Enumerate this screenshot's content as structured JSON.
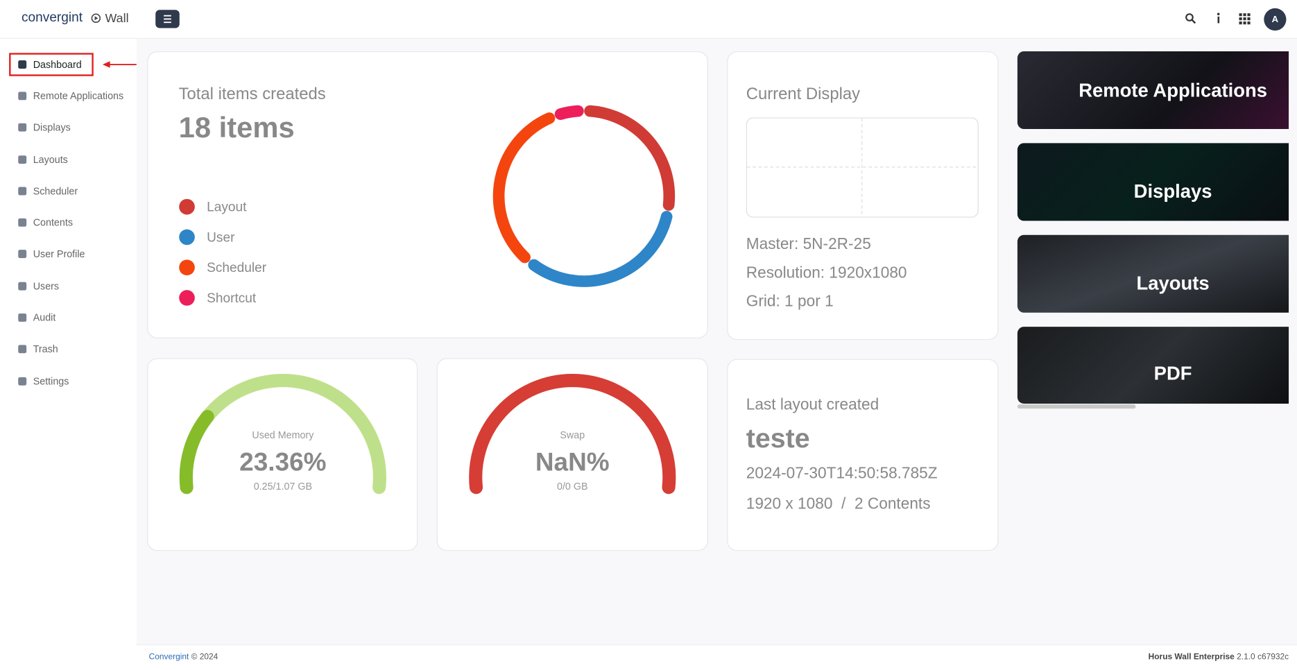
{
  "header": {
    "brand": "convergint",
    "app": "Wall",
    "user_initial": "A"
  },
  "sidebar": {
    "items": [
      "Dashboard",
      "Remote Applications",
      "Displays",
      "Layouts",
      "Scheduler",
      "Contents",
      "User Profile",
      "Users",
      "Audit",
      "Trash",
      "Settings"
    ]
  },
  "chart_data": {
    "type": "donut",
    "title": "Total items createds",
    "total_label": "18 items",
    "categories": [
      "Layout",
      "User",
      "Scheduler",
      "Shortcut"
    ],
    "values": [
      5,
      6,
      6,
      1
    ],
    "colors": [
      "#d13b35",
      "#2e86c8",
      "#f4450f",
      "#ec1f5b"
    ]
  },
  "current_display": {
    "title": "Current Display",
    "lines": [
      "Master: 5N-2R-25",
      "Resolution: 1920x1080",
      "Grid: 1 por 1"
    ]
  },
  "gauges": [
    {
      "title": "Used Memory",
      "value": 23.36,
      "value_label": "23.36%",
      "detail": "0.25/1.07 GB",
      "track_color": "#bfe08a",
      "fill_color": "#86bc2a",
      "range": [
        0,
        100
      ]
    },
    {
      "title": "Swap",
      "value": null,
      "value_label": "NaN%",
      "detail": "0/0 GB",
      "track_color": "#d63d35",
      "fill_color": "#d63d35",
      "range": [
        0,
        100
      ]
    }
  ],
  "last_layout": {
    "title": "Last layout created",
    "name": "teste",
    "date": "2024-07-30T14:50:58.785Z",
    "size": "1920 x 1080",
    "separator": "/",
    "contents": "2 Contents"
  },
  "tiles": [
    "Remote Applications",
    "Displays",
    "Layouts",
    "PDF"
  ],
  "footer": {
    "link": "Convergint",
    "copyright": "© 2024",
    "product": "Horus Wall Enterprise",
    "version": "2.1.0 c67932c"
  }
}
